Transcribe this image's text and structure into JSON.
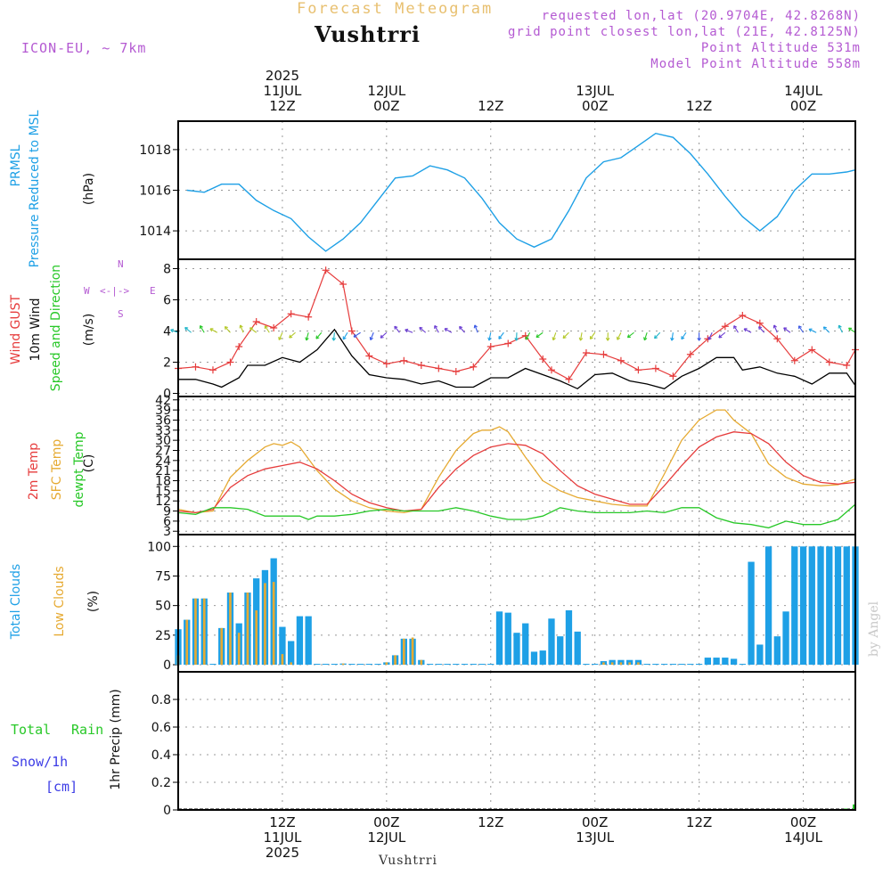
{
  "header": {
    "title": "Forecast Meteogram",
    "station": "Vushtrri",
    "model": "ICON-EU, ~ 7km",
    "requested": "requested lon,lat (20.9704E, 42.8268N)",
    "gridpoint": "grid point closest lon,lat (21E, 42.8125N)",
    "point_alt": "Point Altitude 531m",
    "model_alt": "Model Point Altitude 558m"
  },
  "footer": {
    "station": "Vushtrri",
    "watermark": "by Angel"
  },
  "time_axis": {
    "top_ticks": [
      {
        "hour": 12,
        "lines": [
          "2025",
          "11JUL",
          "12Z"
        ]
      },
      {
        "hour": 24,
        "lines": [
          "12JUL",
          "00Z"
        ]
      },
      {
        "hour": 36,
        "lines": [
          "12Z"
        ]
      },
      {
        "hour": 48,
        "lines": [
          "13JUL",
          "00Z"
        ]
      },
      {
        "hour": 60,
        "lines": [
          "12Z"
        ]
      },
      {
        "hour": 72,
        "lines": [
          "14JUL",
          "00Z"
        ]
      }
    ],
    "bottom_ticks": [
      {
        "hour": 12,
        "lines": [
          "12Z",
          "11JUL",
          "2025"
        ]
      },
      {
        "hour": 24,
        "lines": [
          "00Z",
          "12JUL"
        ]
      },
      {
        "hour": 36,
        "lines": [
          "12Z"
        ]
      },
      {
        "hour": 48,
        "lines": [
          "00Z",
          "13JUL"
        ]
      },
      {
        "hour": 60,
        "lines": [
          "12Z"
        ]
      },
      {
        "hour": 72,
        "lines": [
          "00Z",
          "14JUL"
        ]
      }
    ]
  },
  "panels": {
    "pressure": {
      "labels": [
        "PRMSL",
        "Pressure Reduced to MSL"
      ],
      "unit": "(hPa)"
    },
    "wind": {
      "labels": [
        "Wind GUST",
        "10m Wind",
        "Speed and Direction"
      ],
      "unit": "(m/s)",
      "compass": {
        "n": "N",
        "s": "S",
        "w": "W",
        "e": "E",
        "arrows": "<-|->"
      }
    },
    "temp": {
      "labels": [
        "2m Temp",
        "SFC Temp",
        "dewpt Temp"
      ],
      "unit": "(C)"
    },
    "clouds": {
      "labels": [
        "Total Clouds",
        "Low Clouds"
      ],
      "unit": "(%)"
    },
    "precip": {
      "labels": [
        "Total",
        "Rain",
        "Snow/1h",
        "[cm]"
      ],
      "unit": "1hr Precip (mm)"
    }
  },
  "colors": {
    "pressure": "#1ea0e6",
    "gust": "#e63c3c",
    "wind": "#000000",
    "temp2m": "#e63c3c",
    "sfc": "#e6aa32",
    "dewpt": "#28c828",
    "total_clouds": "#1ea0e6",
    "low_clouds": "#e6aa32",
    "rain": "#28c828",
    "snow": "#3c3ce6",
    "header_purple": "#b45ad2",
    "header_gold": "#e8c070"
  },
  "chart_data": [
    {
      "type": "line",
      "name": "PRMSL",
      "ylim": [
        1012.6,
        1019.4
      ],
      "yticks": [
        1014,
        1016,
        1018
      ],
      "x": [
        1,
        3,
        5,
        7,
        9,
        11,
        13,
        15,
        17,
        19,
        21,
        23,
        25,
        27,
        29,
        31,
        33,
        35,
        37,
        39,
        41,
        43,
        45,
        47,
        49,
        51,
        53,
        55,
        57,
        59,
        61,
        63,
        65,
        67,
        69,
        71,
        73,
        75,
        77,
        78
      ],
      "y": [
        1016,
        1015.9,
        1016.3,
        1016.3,
        1015.5,
        1015,
        1014.6,
        1013.7,
        1013,
        1013.6,
        1014.4,
        1015.5,
        1016.6,
        1016.7,
        1017.2,
        1017,
        1016.6,
        1015.6,
        1014.4,
        1013.6,
        1013.2,
        1013.6,
        1015,
        1016.6,
        1017.4,
        1017.6,
        1018.2,
        1018.8,
        1018.6,
        1017.8,
        1016.8,
        1015.7,
        1014.7,
        1014,
        1014.7,
        1016,
        1016.8,
        1016.8,
        1016.9,
        1017
      ]
    },
    {
      "type": "line",
      "name": "Wind GUST",
      "ylim": [
        -0.2,
        8.6
      ],
      "yticks": [
        0,
        2,
        4,
        6,
        8
      ],
      "x": [
        0,
        2,
        4,
        6,
        7,
        9,
        11,
        13,
        15,
        17,
        19,
        20,
        22,
        24,
        26,
        28,
        30,
        32,
        34,
        36,
        38,
        40,
        42,
        43,
        45,
        47,
        49,
        51,
        53,
        55,
        57,
        59,
        61,
        63,
        65,
        67,
        69,
        71,
        73,
        75,
        77,
        78
      ],
      "y": [
        1.6,
        1.7,
        1.5,
        2,
        3,
        4.6,
        4.2,
        5.1,
        4.9,
        7.9,
        7,
        4,
        2.4,
        1.9,
        2.1,
        1.8,
        1.6,
        1.4,
        1.7,
        3,
        3.2,
        3.7,
        2.2,
        1.5,
        0.9,
        2.6,
        2.5,
        2.1,
        1.5,
        1.6,
        1.1,
        2.5,
        3.5,
        4.3,
        5,
        4.5,
        3.5,
        2.1,
        2.8,
        2,
        1.8,
        2.8
      ]
    },
    {
      "type": "line",
      "name": "10m Wind",
      "ylim": [
        -0.2,
        8.6
      ],
      "x": [
        0,
        2,
        4,
        5,
        7,
        8,
        10,
        12,
        14,
        16,
        18,
        20,
        22,
        24,
        26,
        28,
        30,
        32,
        34,
        36,
        38,
        40,
        42,
        44,
        46,
        48,
        50,
        52,
        54,
        56,
        58,
        60,
        62,
        64,
        65,
        67,
        69,
        71,
        73,
        75,
        77,
        78
      ],
      "y": [
        0.9,
        0.9,
        0.6,
        0.4,
        1,
        1.8,
        1.8,
        2.3,
        2,
        2.8,
        4.1,
        2.4,
        1.2,
        1,
        0.9,
        0.6,
        0.8,
        0.4,
        0.4,
        1,
        1,
        1.6,
        1.2,
        0.8,
        0.3,
        1.2,
        1.3,
        0.8,
        0.6,
        0.3,
        1.1,
        1.6,
        2.3,
        2.3,
        1.5,
        1.7,
        1.3,
        1.1,
        0.6,
        1.3,
        1.3,
        0.5
      ]
    },
    {
      "type": "line",
      "name": "2m Temp",
      "ylim": [
        2,
        43
      ],
      "yticks": [
        3,
        6,
        9,
        12,
        15,
        18,
        21,
        24,
        27,
        30,
        33,
        36,
        39,
        42
      ],
      "x": [
        0,
        2,
        4,
        6,
        8,
        10,
        12,
        14,
        16,
        18,
        20,
        22,
        24,
        26,
        28,
        30,
        32,
        34,
        36,
        38,
        40,
        42,
        44,
        46,
        48,
        50,
        52,
        54,
        56,
        58,
        60,
        62,
        64,
        66,
        68,
        70,
        72,
        74,
        76,
        78
      ],
      "y": [
        9,
        8.5,
        9.5,
        16,
        19.5,
        21.5,
        22.5,
        23.5,
        21.5,
        18,
        14,
        11.5,
        10,
        9,
        9.5,
        16,
        21.5,
        25.5,
        28,
        29,
        28.5,
        26,
        21,
        16.5,
        14,
        12.5,
        11,
        11,
        16.5,
        22.5,
        28,
        31,
        32.5,
        32,
        29,
        23.5,
        19.5,
        17.5,
        17,
        17.5
      ]
    },
    {
      "type": "line",
      "name": "SFC Temp",
      "ylim": [
        2,
        43
      ],
      "x": [
        0,
        2,
        4,
        6,
        8,
        10,
        11,
        12,
        13,
        14,
        16,
        18,
        20,
        22,
        24,
        26,
        28,
        30,
        32,
        34,
        35,
        36,
        37,
        38,
        40,
        42,
        44,
        46,
        48,
        50,
        52,
        54,
        56,
        58,
        60,
        62,
        63,
        64,
        66,
        68,
        70,
        72,
        74,
        76,
        78
      ],
      "y": [
        9.5,
        8.5,
        9,
        19,
        24,
        28,
        29,
        28.5,
        29.5,
        28,
        21,
        15.5,
        12,
        10,
        9,
        8.5,
        9.5,
        19,
        27,
        32,
        33,
        33,
        34,
        32.5,
        25,
        18,
        15,
        13,
        12,
        11,
        10.5,
        10.5,
        20,
        30,
        36,
        39,
        39,
        36,
        32,
        23,
        19,
        17,
        16.5,
        16.8,
        18.5
      ]
    },
    {
      "type": "line",
      "name": "dewpt Temp",
      "ylim": [
        2,
        43
      ],
      "x": [
        0,
        2,
        4,
        6,
        8,
        10,
        12,
        14,
        15,
        16,
        18,
        20,
        22,
        24,
        26,
        28,
        30,
        32,
        34,
        36,
        38,
        40,
        42,
        44,
        46,
        48,
        50,
        52,
        54,
        56,
        58,
        60,
        62,
        64,
        66,
        68,
        70,
        72,
        74,
        76,
        78
      ],
      "y": [
        8.5,
        8,
        10,
        10,
        9.5,
        7.5,
        7.5,
        7.5,
        6.5,
        7.5,
        7.5,
        8,
        9,
        9.5,
        9,
        9,
        9,
        10,
        9,
        7.5,
        6.5,
        6.5,
        7.5,
        10,
        9,
        8.5,
        8.5,
        8.5,
        9,
        8.5,
        10,
        10,
        7,
        5.5,
        5,
        4,
        6,
        5,
        5,
        6.5,
        11
      ]
    },
    {
      "type": "bar",
      "name": "Total Clouds",
      "ylim": [
        -6,
        110
      ],
      "yticks": [
        0,
        25,
        50,
        75,
        100
      ],
      "x": [
        0,
        1,
        2,
        3,
        4,
        5,
        6,
        7,
        8,
        9,
        10,
        11,
        12,
        13,
        14,
        15,
        16,
        17,
        18,
        19,
        20,
        21,
        22,
        23,
        24,
        25,
        26,
        27,
        28,
        29,
        30,
        31,
        32,
        33,
        34,
        35,
        36,
        37,
        38,
        39,
        40,
        41,
        42,
        43,
        44,
        45,
        46,
        47,
        48,
        49,
        50,
        51,
        52,
        53,
        54,
        55,
        56,
        57,
        58,
        59,
        60,
        61,
        62,
        63,
        64,
        65,
        66,
        67,
        68,
        69,
        70,
        71,
        72,
        73,
        74,
        75,
        76,
        77,
        78
      ],
      "values": [
        30,
        38,
        56,
        56,
        0,
        31,
        61,
        35,
        61,
        73,
        80,
        90,
        32,
        20,
        41,
        41,
        0,
        0,
        0,
        1,
        0,
        0,
        0,
        0,
        2,
        8,
        22,
        22,
        4,
        0,
        0,
        0,
        0,
        0,
        0,
        0,
        0,
        45,
        44,
        27,
        35,
        11,
        12,
        39,
        24,
        46,
        28,
        0,
        0,
        3,
        4,
        4,
        4,
        4,
        0,
        0,
        0,
        0,
        0,
        0,
        0,
        6,
        6,
        6,
        5,
        0,
        87,
        17,
        100,
        24,
        45,
        100,
        100,
        100,
        100,
        100,
        100,
        100,
        100
      ],
      "values_end": 65
    },
    {
      "type": "bar",
      "name": "Low Clouds",
      "ylim": [
        -6,
        110
      ],
      "x": [
        0,
        1,
        2,
        3,
        4,
        5,
        6,
        7,
        8,
        9,
        10,
        11,
        12,
        13,
        14,
        15,
        16,
        17,
        18,
        19,
        20,
        21,
        22,
        23,
        24,
        25,
        26,
        27,
        28,
        29,
        30,
        31,
        32,
        33,
        34,
        35,
        36,
        37,
        38,
        39,
        40,
        41,
        42,
        43,
        44,
        45,
        46,
        47,
        48,
        49,
        50,
        51,
        52,
        53,
        54,
        55,
        56,
        57,
        58,
        59,
        60,
        61,
        62,
        63,
        64,
        65,
        66,
        67,
        68,
        69,
        70,
        71,
        72,
        73,
        74,
        75,
        76,
        77,
        78
      ],
      "values": [
        8,
        38,
        56,
        56,
        0,
        31,
        61,
        27,
        61,
        46,
        69,
        70,
        9,
        2,
        0,
        0,
        0,
        0,
        0,
        1,
        0,
        0,
        0,
        0,
        2,
        8,
        22,
        23,
        4,
        0,
        0,
        0,
        0,
        0,
        0,
        0,
        0,
        0,
        0,
        0,
        0,
        0,
        0,
        0,
        0,
        0,
        0,
        0,
        0,
        2,
        2,
        2,
        2,
        2,
        0,
        0,
        0,
        0,
        0,
        0,
        0,
        0,
        0,
        0,
        0,
        0,
        0,
        0,
        0,
        0,
        0,
        0,
        0,
        0,
        0,
        0,
        0,
        0,
        0
      ]
    },
    {
      "type": "bar",
      "name": "Total Rain",
      "ylim": [
        0,
        1
      ],
      "yticks": [
        0,
        0.2,
        0.4,
        0.6,
        0.8
      ],
      "x": [
        77,
        78
      ],
      "values": [
        0.01,
        0.04
      ]
    }
  ]
}
